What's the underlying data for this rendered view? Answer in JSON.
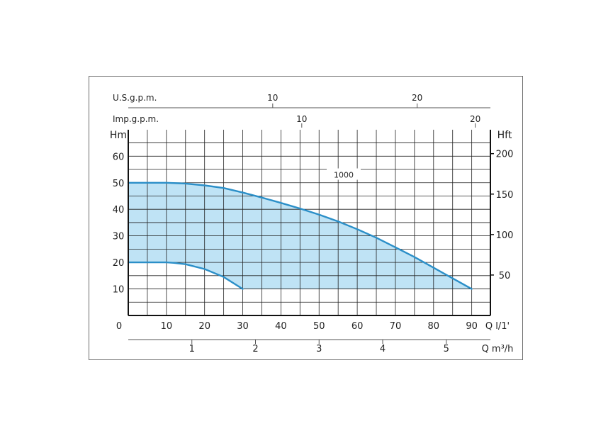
{
  "chart_data": {
    "type": "area",
    "title": "",
    "colors": {
      "curve": "#2b8fc8",
      "fill": "#bfe3f5",
      "grid": "#222222",
      "axis": "#111111"
    },
    "grid": true,
    "x": {
      "label": "Q l/1'",
      "ticks": [
        0,
        10,
        20,
        30,
        40,
        50,
        60,
        70,
        80,
        90
      ],
      "range": [
        0,
        95
      ]
    },
    "y_left": {
      "label": "Hm",
      "ticks": [
        10,
        20,
        30,
        40,
        50,
        60
      ],
      "range": [
        0,
        66
      ]
    },
    "y_right": {
      "label": "Hft",
      "ticks": [
        50,
        100,
        150,
        200
      ]
    },
    "axis_usgpm": {
      "label": "U.S.g.p.m.",
      "ticks": [
        10,
        20
      ]
    },
    "axis_impgpm": {
      "label": "Imp.g.p.m.",
      "ticks": [
        10,
        20
      ]
    },
    "axis_m3h": {
      "label": "Q m³/h",
      "ticks": [
        1,
        2,
        3,
        4,
        5
      ]
    },
    "series": [
      {
        "name": "1000",
        "points": [
          [
            0,
            50
          ],
          [
            10,
            50
          ],
          [
            15,
            49.7
          ],
          [
            20,
            49
          ],
          [
            25,
            48
          ],
          [
            30,
            46.3
          ],
          [
            35,
            44.4
          ],
          [
            40,
            42.4
          ],
          [
            45,
            40.3
          ],
          [
            50,
            38
          ],
          [
            55,
            35.4
          ],
          [
            60,
            32.5
          ],
          [
            65,
            29.3
          ],
          [
            70,
            25.7
          ],
          [
            75,
            22
          ],
          [
            80,
            18
          ],
          [
            85,
            14
          ],
          [
            90,
            10
          ]
        ]
      },
      {
        "name": "",
        "points": [
          [
            0,
            20
          ],
          [
            10,
            20
          ],
          [
            12,
            19.8
          ],
          [
            15,
            19.3
          ],
          [
            20,
            17.5
          ],
          [
            25,
            14.5
          ],
          [
            30,
            10
          ]
        ]
      }
    ]
  }
}
